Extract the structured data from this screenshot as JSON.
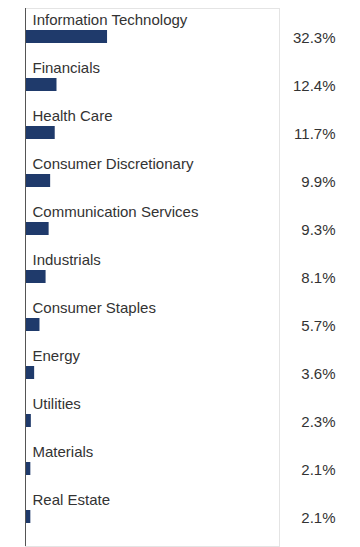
{
  "chart_data": {
    "type": "bar",
    "orientation": "horizontal",
    "categories": [
      "Information Technology",
      "Financials",
      "Health Care",
      "Consumer Discretionary",
      "Communication Services",
      "Industrials",
      "Consumer Staples",
      "Energy",
      "Utilities",
      "Materials",
      "Real Estate"
    ],
    "values": [
      32.3,
      12.4,
      11.7,
      9.9,
      9.3,
      8.1,
      5.7,
      3.6,
      2.3,
      2.1,
      2.1
    ],
    "value_labels": [
      "32.3%",
      "12.4%",
      "11.7%",
      "9.9%",
      "9.3%",
      "8.1%",
      "5.7%",
      "3.6%",
      "2.3%",
      "2.1%",
      "2.1%"
    ],
    "color": "#1f3a6b",
    "xlim": [
      0,
      100
    ],
    "xticks": [],
    "tick_labels": false,
    "data_labels": true
  }
}
